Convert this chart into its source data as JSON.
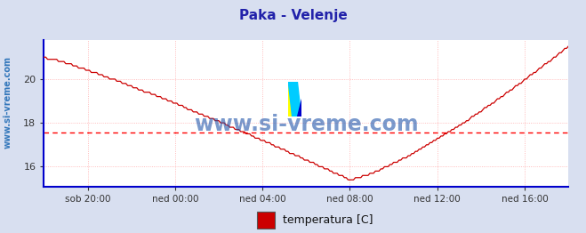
{
  "title": "Paka - Velenje",
  "title_color": "#2222aa",
  "title_fontsize": 11,
  "bg_color": "#d8dff0",
  "plot_bg_color": "#ffffff",
  "grid_color": "#ffaaaa",
  "axis_color": "#0000cc",
  "line_color": "#cc0000",
  "avg_line_color": "#ff0000",
  "avg_line_value": 17.55,
  "ylabel_text": "www.si-vreme.com",
  "ylabel_color": "#3377bb",
  "xlabel_ticks": [
    "sob 20:00",
    "ned 00:00",
    "ned 04:00",
    "ned 08:00",
    "ned 12:00",
    "ned 16:00"
  ],
  "ylim_low": 15.1,
  "ylim_high": 21.8,
  "yticks": [
    16,
    18,
    20
  ],
  "legend_label": "temperatura [C]",
  "legend_color": "#cc0000",
  "watermark_text": "www.si-vreme.com",
  "watermark_color": "#2255aa",
  "logo_yellow": "#ffff00",
  "logo_cyan": "#00ccff",
  "logo_blue": "#0000cc"
}
